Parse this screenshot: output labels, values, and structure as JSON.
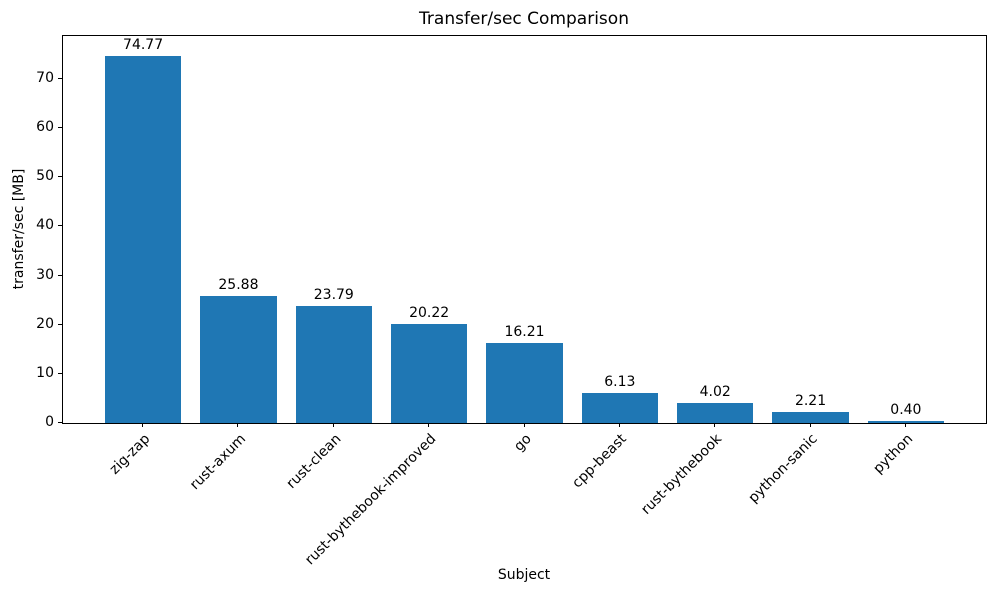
{
  "chart_data": {
    "type": "bar",
    "title": "Transfer/sec Comparison",
    "xlabel": "Subject",
    "ylabel": "transfer/sec [MB]",
    "categories": [
      "zig-zap",
      "rust-axum",
      "rust-clean",
      "rust-bythebook-improved",
      "go",
      "cpp-beast",
      "rust-bythebook",
      "python-sanic",
      "python"
    ],
    "values": [
      74.77,
      25.88,
      23.79,
      20.22,
      16.21,
      6.13,
      4.02,
      2.21,
      0.4
    ],
    "value_labels": [
      "74.77",
      "25.88",
      "23.79",
      "20.22",
      "16.21",
      "6.13",
      "4.02",
      "2.21",
      "0.40"
    ],
    "yticks": [
      0,
      10,
      20,
      30,
      40,
      50,
      60,
      70
    ],
    "ylim": [
      0,
      78.75
    ],
    "bar_color": "#1f77b4",
    "text_color": "#000000",
    "grid": false,
    "legend": null
  }
}
